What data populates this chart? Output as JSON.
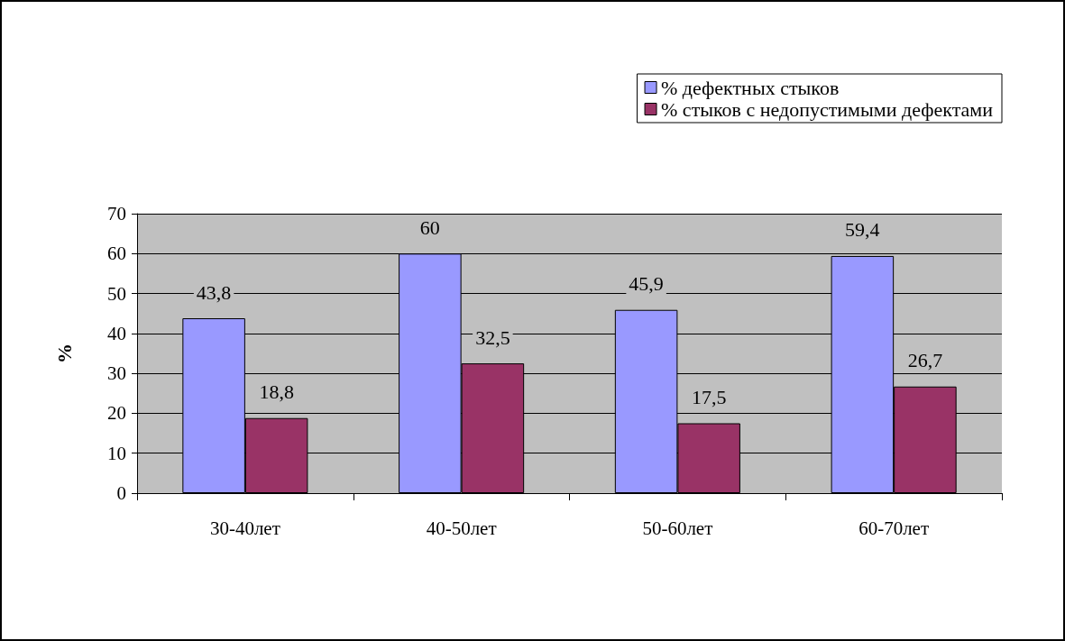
{
  "chart_data": {
    "type": "bar",
    "ylabel": "%",
    "categories": [
      "30-40лет",
      "40-50лет",
      "50-60лет",
      "60-70лет"
    ],
    "series": [
      {
        "name": "% дефектных стыков",
        "color": "#9999ff",
        "values": [
          43.8,
          60,
          45.9,
          59.4
        ],
        "value_labels": [
          "43,8",
          "60",
          "45,9",
          "59,4"
        ]
      },
      {
        "name": "% стыков с недопустимыми дефектами",
        "color": "#993366",
        "values": [
          18.8,
          32.5,
          17.5,
          26.7
        ],
        "value_labels": [
          "18,8",
          "32,5",
          "17,5",
          "26,7"
        ]
      }
    ],
    "ylim": [
      0,
      70
    ],
    "yticks": [
      0,
      10,
      20,
      30,
      40,
      50,
      60,
      70
    ],
    "grid": "y",
    "legend": "top right"
  }
}
